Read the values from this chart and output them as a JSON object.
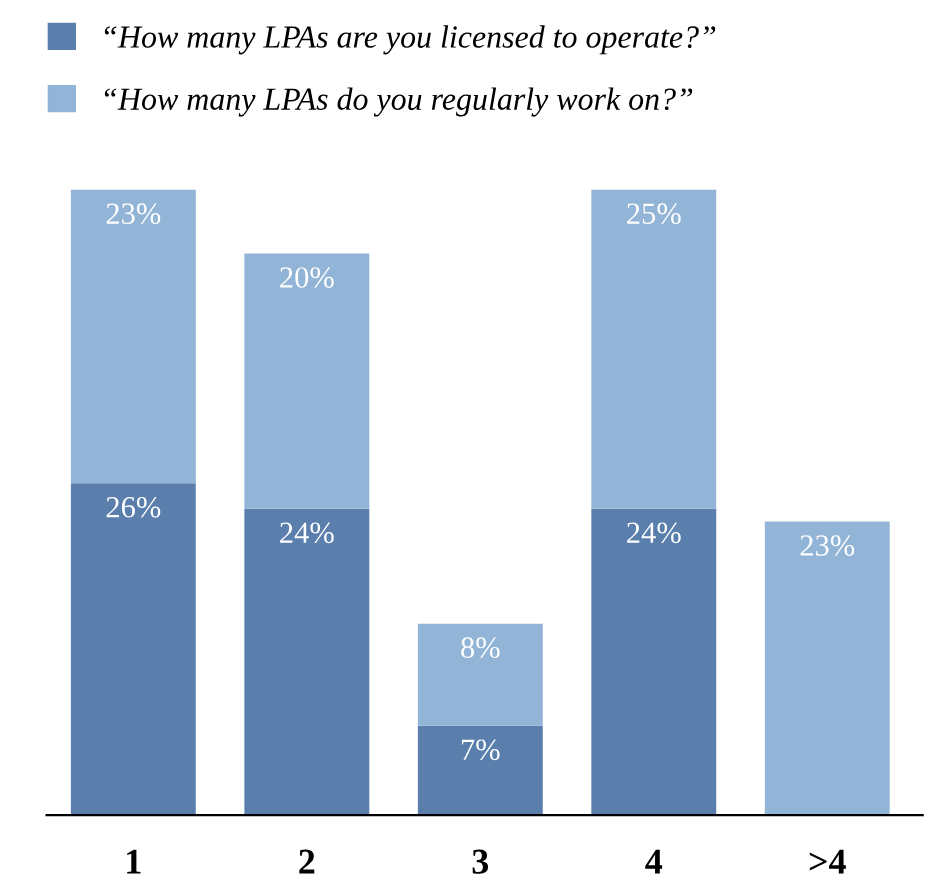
{
  "chart_data": {
    "type": "bar",
    "stacked": true,
    "legend": "top left",
    "grid": false,
    "categories": [
      "1",
      "2",
      "3",
      "4",
      ">4"
    ],
    "series": [
      {
        "name": "“How many LPAs are you licensed to operate?”",
        "color": "#5a7fad",
        "values": [
          26,
          24,
          7,
          24,
          null
        ],
        "value_labels": [
          "26%",
          "24%",
          "7%",
          "24%",
          null
        ]
      },
      {
        "name": "“How many LPAs do you regularly work on?”",
        "color": "#92b4d6",
        "values": [
          23,
          20,
          8,
          25,
          23
        ],
        "value_labels": [
          "23%",
          "20%",
          "8%",
          "25%",
          "23%"
        ]
      }
    ]
  }
}
